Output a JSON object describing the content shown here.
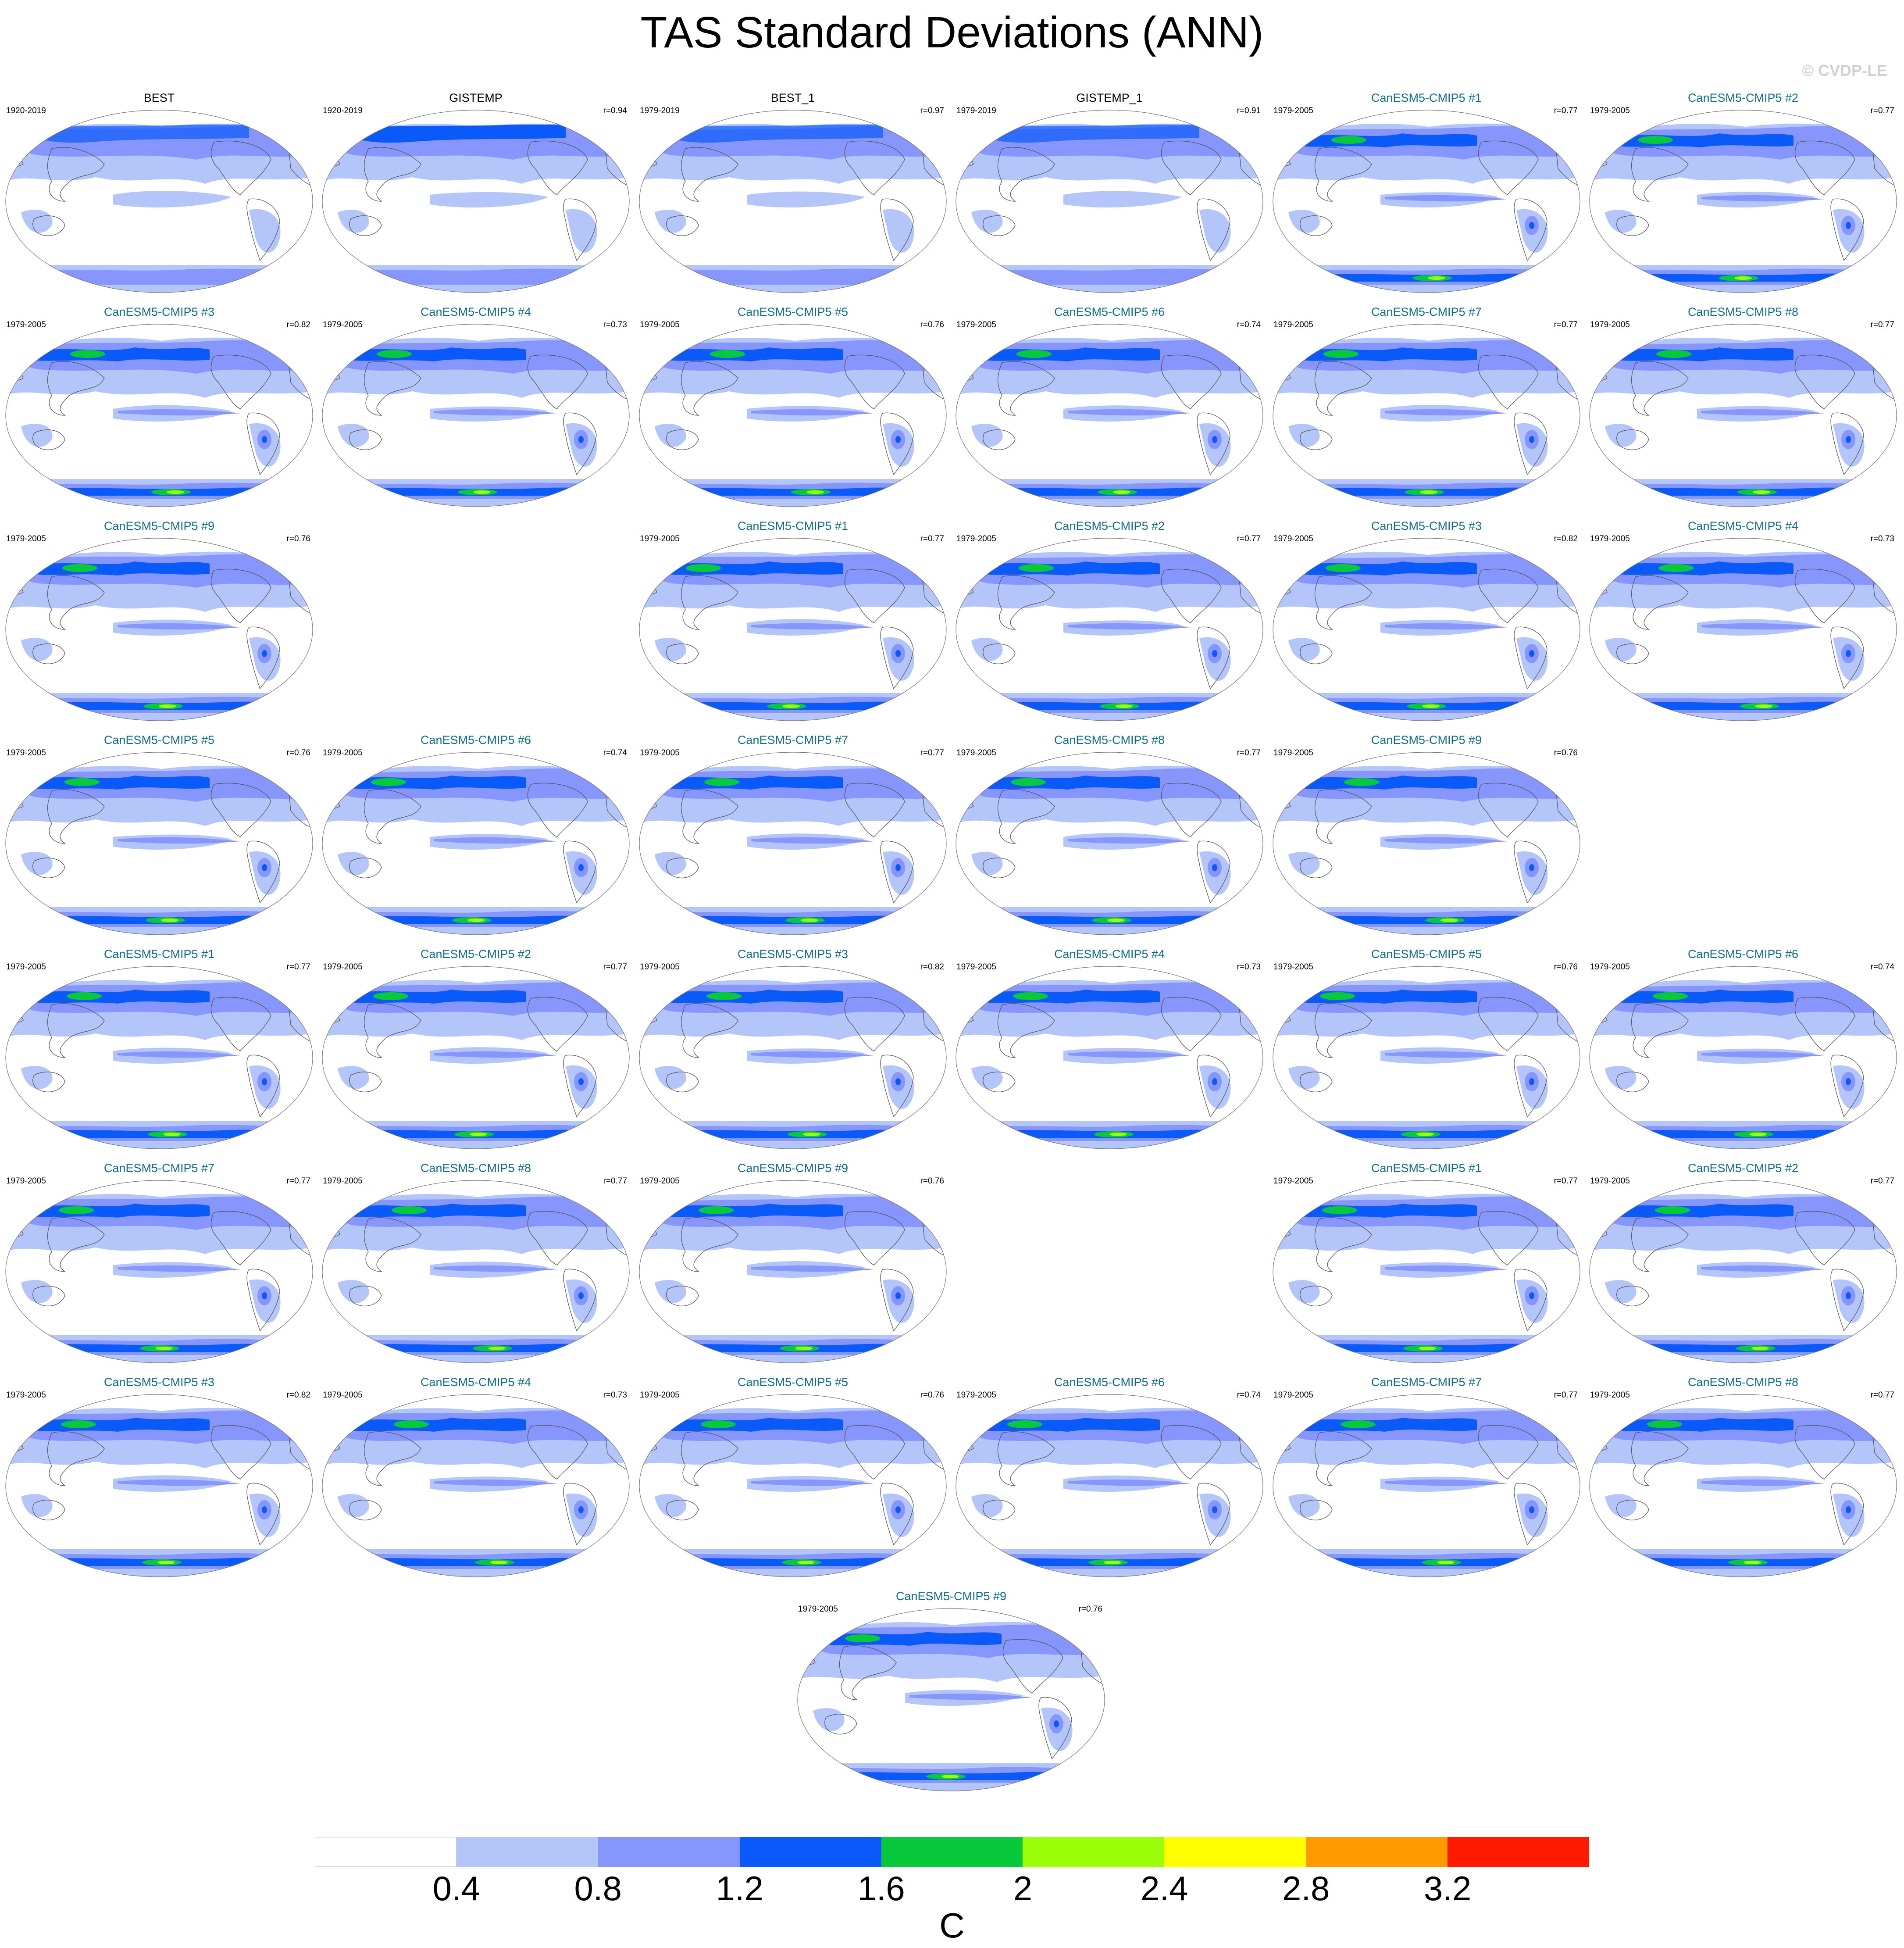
{
  "title": "TAS Standard Deviations (ANN)",
  "watermark": "© CVDP-LE",
  "colorbar": {
    "units": "C",
    "levels": [
      "0.4",
      "0.8",
      "1.2",
      "1.6",
      "2",
      "2.4",
      "2.8",
      "3.2"
    ],
    "colors": [
      "#ffffff",
      "#b4c5fa",
      "#8796fd",
      "#0a5afa",
      "#08c83c",
      "#9bff0a",
      "#ffff00",
      "#ff9a00",
      "#ff1a00"
    ]
  },
  "panels": [
    {
      "name": "BEST",
      "years": "1920-2019",
      "r": "",
      "kind": "obs"
    },
    {
      "name": "GISTEMP",
      "years": "1920-2019",
      "r": "r=0.94",
      "kind": "obs"
    },
    {
      "name": "BEST_1",
      "years": "1979-2019",
      "r": "r=0.97",
      "kind": "obs"
    },
    {
      "name": "GISTEMP_1",
      "years": "1979-2019",
      "r": "r=0.91",
      "kind": "obs"
    },
    {
      "name": "CanESM5-CMIP5 #1",
      "years": "1979-2005",
      "r": "r=0.77",
      "kind": "model"
    },
    {
      "name": "CanESM5-CMIP5 #2",
      "years": "1979-2005",
      "r": "r=0.77",
      "kind": "model"
    },
    {
      "name": "CanESM5-CMIP5 #3",
      "years": "1979-2005",
      "r": "r=0.82",
      "kind": "model"
    },
    {
      "name": "CanESM5-CMIP5 #4",
      "years": "1979-2005",
      "r": "r=0.73",
      "kind": "model"
    },
    {
      "name": "CanESM5-CMIP5 #5",
      "years": "1979-2005",
      "r": "r=0.76",
      "kind": "model"
    },
    {
      "name": "CanESM5-CMIP5 #6",
      "years": "1979-2005",
      "r": "r=0.74",
      "kind": "model"
    },
    {
      "name": "CanESM5-CMIP5 #7",
      "years": "1979-2005",
      "r": "r=0.77",
      "kind": "model"
    },
    {
      "name": "CanESM5-CMIP5 #8",
      "years": "1979-2005",
      "r": "r=0.77",
      "kind": "model"
    },
    {
      "name": "CanESM5-CMIP5 #9",
      "years": "1979-2005",
      "r": "r=0.76",
      "kind": "model"
    },
    {
      "name": "CanESM5-CMIP5 #1",
      "years": "1979-2005",
      "r": "r=0.77",
      "kind": "model"
    },
    {
      "name": "CanESM5-CMIP5 #2",
      "years": "1979-2005",
      "r": "r=0.77",
      "kind": "model"
    },
    {
      "name": "CanESM5-CMIP5 #3",
      "years": "1979-2005",
      "r": "r=0.82",
      "kind": "model"
    },
    {
      "name": "CanESM5-CMIP5 #4",
      "years": "1979-2005",
      "r": "r=0.73",
      "kind": "model"
    },
    {
      "name": "CanESM5-CMIP5 #5",
      "years": "1979-2005",
      "r": "r=0.76",
      "kind": "model"
    },
    {
      "name": "CanESM5-CMIP5 #6",
      "years": "1979-2005",
      "r": "r=0.74",
      "kind": "model"
    },
    {
      "name": "CanESM5-CMIP5 #7",
      "years": "1979-2005",
      "r": "r=0.77",
      "kind": "model"
    },
    {
      "name": "CanESM5-CMIP5 #8",
      "years": "1979-2005",
      "r": "r=0.77",
      "kind": "model"
    },
    {
      "name": "CanESM5-CMIP5 #9",
      "years": "1979-2005",
      "r": "r=0.76",
      "kind": "model"
    },
    {
      "name": "CanESM5-CMIP5 #1",
      "years": "1979-2005",
      "r": "r=0.77",
      "kind": "model"
    },
    {
      "name": "CanESM5-CMIP5 #2",
      "years": "1979-2005",
      "r": "r=0.77",
      "kind": "model"
    },
    {
      "name": "CanESM5-CMIP5 #3",
      "years": "1979-2005",
      "r": "r=0.82",
      "kind": "model"
    },
    {
      "name": "CanESM5-CMIP5 #4",
      "years": "1979-2005",
      "r": "r=0.73",
      "kind": "model"
    },
    {
      "name": "CanESM5-CMIP5 #5",
      "years": "1979-2005",
      "r": "r=0.76",
      "kind": "model"
    },
    {
      "name": "CanESM5-CMIP5 #6",
      "years": "1979-2005",
      "r": "r=0.74",
      "kind": "model"
    },
    {
      "name": "CanESM5-CMIP5 #7",
      "years": "1979-2005",
      "r": "r=0.77",
      "kind": "model"
    },
    {
      "name": "CanESM5-CMIP5 #8",
      "years": "1979-2005",
      "r": "r=0.77",
      "kind": "model"
    },
    {
      "name": "CanESM5-CMIP5 #9",
      "years": "1979-2005",
      "r": "r=0.76",
      "kind": "model"
    },
    {
      "name": "CanESM5-CMIP5 #1",
      "years": "1979-2005",
      "r": "r=0.77",
      "kind": "model"
    },
    {
      "name": "CanESM5-CMIP5 #2",
      "years": "1979-2005",
      "r": "r=0.77",
      "kind": "model"
    },
    {
      "name": "CanESM5-CMIP5 #3",
      "years": "1979-2005",
      "r": "r=0.82",
      "kind": "model"
    },
    {
      "name": "CanESM5-CMIP5 #4",
      "years": "1979-2005",
      "r": "r=0.73",
      "kind": "model"
    },
    {
      "name": "CanESM5-CMIP5 #5",
      "years": "1979-2005",
      "r": "r=0.76",
      "kind": "model"
    },
    {
      "name": "CanESM5-CMIP5 #6",
      "years": "1979-2005",
      "r": "r=0.74",
      "kind": "model"
    },
    {
      "name": "CanESM5-CMIP5 #7",
      "years": "1979-2005",
      "r": "r=0.77",
      "kind": "model"
    },
    {
      "name": "CanESM5-CMIP5 #8",
      "years": "1979-2005",
      "r": "r=0.77",
      "kind": "model"
    },
    {
      "name": "CanESM5-CMIP5 #9",
      "years": "1979-2005",
      "r": "r=0.76",
      "kind": "model"
    }
  ]
}
